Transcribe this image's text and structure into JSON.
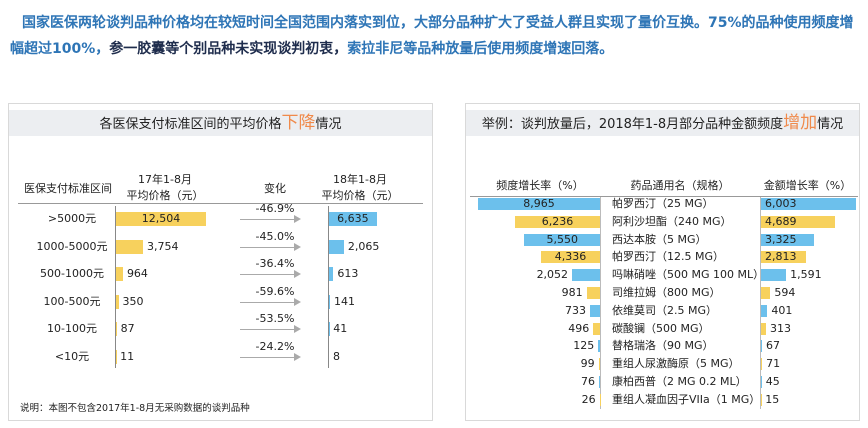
{
  "header": {
    "parts": [
      {
        "text": "国家医保两轮谈判品种价格均在较短时间全国范围内落实到位，大部分品种扩大了受益人群且实现了量价互换。75%的品种使用频度增幅超过100%，",
        "color": "#2e75b6"
      },
      {
        "text": "参一胶囊等个别品种未实现谈判初衷，",
        "color": "#1f2d4d"
      },
      {
        "text": "索拉非尼等品种放量后使用频度增速回落。",
        "color": "#2e75b6"
      }
    ]
  },
  "chart_data": [
    {
      "type": "price-compare",
      "title_parts": [
        "各医保支付标准区间的平均价格",
        "下降",
        "情况"
      ],
      "category_label": "医保支付标准区间",
      "categories": [
        ">5000元",
        "1000-5000元",
        "500-1000元",
        "100-500元",
        "10-100元",
        "<10元"
      ],
      "series": [
        {
          "name": "17年1-8月\n平均价格（元）",
          "color": "#f7d15d",
          "values": [
            12504,
            3754,
            964,
            350,
            87,
            11
          ],
          "value_labels": [
            "12,504",
            "3,754",
            "964",
            "350",
            "87",
            "11"
          ]
        },
        {
          "name": "18年1-8月\n平均价格（元）",
          "color": "#6cc0ec",
          "values": [
            6635,
            2065,
            613,
            141,
            41,
            8
          ],
          "value_labels": [
            "6,635",
            "2,065",
            "613",
            "141",
            "41",
            "8"
          ]
        }
      ],
      "changes": {
        "name": "变化",
        "values": [
          -46.9,
          -45.0,
          -36.4,
          -59.6,
          -53.5,
          -24.2
        ],
        "value_labels": [
          "-46.9%",
          "-45.0%",
          "-36.4%",
          "-59.6%",
          "-53.5%",
          "-24.2%"
        ]
      },
      "note": "说明：本图不包含2017年1-8月无采购数据的谈判品种"
    },
    {
      "type": "butterfly",
      "title_parts": [
        "举例：谈判放量后，2018年1-8月部分品种金额频度",
        "增加",
        "情况"
      ],
      "category_label": "药品通用名（规格）",
      "categories": [
        "帕罗西汀（25 MG）",
        "阿利沙坦酯（240 MG）",
        "西达本胺（5 MG）",
        "帕罗西汀（12.5 MG）",
        "吗啉硝唑（500 MG 100 ML）",
        "司维拉姆（800 MG）",
        "依维莫司（2.5 MG）",
        "碳酸镧（500 MG）",
        "替格瑞洛（90 MG）",
        "重组人尿激酶原（5 MG）",
        "康柏西普（2 MG 0.2 ML）",
        "重组人凝血因子VIIa（1 MG）"
      ],
      "series": [
        {
          "name": "频度增长率（%）",
          "colors": [
            "#6cc0ec",
            "#f7d15d"
          ],
          "values": [
            8965,
            6236,
            5550,
            4336,
            2052,
            981,
            733,
            496,
            125,
            99,
            76,
            26
          ],
          "value_labels": [
            "8,965",
            "6,236",
            "5,550",
            "4,336",
            "2,052",
            "981",
            "733",
            "496",
            "125",
            "99",
            "76",
            "26"
          ]
        },
        {
          "name": "金额增长率（%）",
          "colors": [
            "#6cc0ec",
            "#f7d15d"
          ],
          "values": [
            6003,
            4689,
            3325,
            2813,
            1591,
            594,
            401,
            313,
            67,
            71,
            45,
            15
          ],
          "value_labels": [
            "6,003",
            "4,689",
            "3,325",
            "2,813",
            "1,591",
            "594",
            "401",
            "313",
            "67",
            "71",
            "45",
            "15"
          ]
        }
      ]
    }
  ]
}
